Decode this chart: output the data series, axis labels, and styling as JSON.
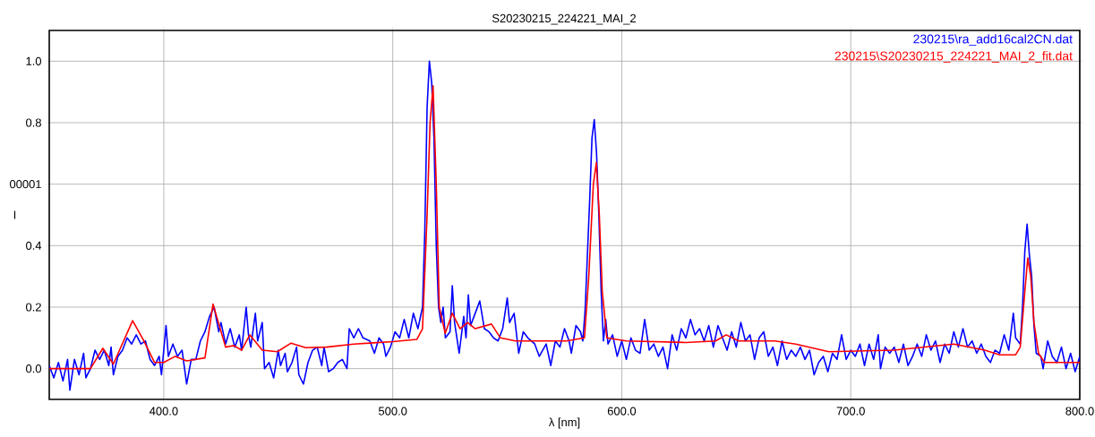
{
  "chart_data": {
    "type": "line",
    "title": "S20230215_224221_MAI_2",
    "xlabel": "λ [nm]",
    "ylabel": "I",
    "xlim": [
      350,
      800
    ],
    "ylim": [
      -0.1,
      1.1
    ],
    "xticks": [
      {
        "value": 400,
        "label": "400.0"
      },
      {
        "value": 500,
        "label": "500.0"
      },
      {
        "value": 600,
        "label": "600.0"
      },
      {
        "value": 700,
        "label": "700.0"
      },
      {
        "value": 800,
        "label": "800.0"
      }
    ],
    "yticks": [
      {
        "value": 0,
        "label": "0.0"
      },
      {
        "value": 0.2,
        "label": "0.2"
      },
      {
        "value": 0.4,
        "label": "0.4"
      },
      {
        "value": 0.6,
        "label": "00001"
      },
      {
        "value": 0.8,
        "label": "0.8"
      },
      {
        "value": 1.0,
        "label": "1.0"
      }
    ],
    "grid": true,
    "legend": "top right",
    "marker": "none",
    "line_style": "solid",
    "series": [
      {
        "name": "230215\\ra_add16cal2CN.dat",
        "color": "#0000ff",
        "x": [
          350,
          352,
          354,
          356,
          358,
          359,
          361,
          363,
          365,
          366,
          368,
          370,
          372,
          374,
          376,
          377,
          378,
          380,
          382,
          384,
          386,
          388,
          390,
          392,
          394,
          396,
          398,
          399,
          401,
          402,
          404,
          406,
          408,
          410,
          412,
          414,
          416,
          418,
          420,
          422,
          424,
          425,
          427,
          429,
          431,
          433,
          434,
          436,
          437,
          438,
          440,
          441,
          443,
          444,
          446,
          448,
          450,
          451,
          453,
          454,
          456,
          458,
          459,
          461,
          463,
          465,
          467,
          469,
          470,
          472,
          474,
          476,
          478,
          480,
          481,
          483,
          485,
          487,
          490,
          492,
          494,
          496,
          497,
          499,
          501,
          503,
          505,
          507,
          509,
          511,
          513,
          514,
          515,
          516,
          517,
          518,
          519,
          520,
          521,
          522,
          523,
          525,
          526,
          527,
          529,
          531,
          532,
          533,
          534,
          536,
          538,
          540,
          542,
          544,
          546,
          548,
          550,
          551,
          553,
          555,
          557,
          559,
          562,
          564,
          567,
          569,
          571,
          573,
          575,
          577,
          578,
          580,
          582,
          583,
          584,
          586,
          587,
          588,
          589,
          590,
          591,
          592,
          593,
          594,
          596,
          598,
          600,
          602,
          604,
          606,
          608,
          610,
          612,
          614,
          616,
          618,
          620,
          622,
          624,
          626,
          628,
          630,
          632,
          634,
          636,
          638,
          640,
          642,
          644,
          646,
          648,
          650,
          652,
          654,
          656,
          658,
          660,
          662,
          664,
          666,
          668,
          670,
          672,
          674,
          676,
          678,
          680,
          682,
          684,
          686,
          688,
          690,
          692,
          694,
          696,
          698,
          700,
          702,
          704,
          706,
          708,
          710,
          712,
          713,
          715,
          717,
          719,
          721,
          723,
          725,
          727,
          729,
          731,
          733,
          735,
          737,
          739,
          741,
          743,
          745,
          747,
          749,
          751,
          753,
          755,
          757,
          759,
          761,
          763,
          765,
          767,
          769,
          771,
          772,
          774,
          775,
          776,
          777,
          778,
          779,
          780,
          781,
          783,
          784,
          786,
          788,
          790,
          792,
          794,
          796,
          798,
          800
        ],
        "values": [
          0.01,
          -0.03,
          0.02,
          -0.04,
          0.03,
          -0.07,
          0.03,
          -0.02,
          0.05,
          -0.03,
          0.0,
          0.06,
          0.03,
          0.06,
          0.01,
          0.07,
          -0.02,
          0.04,
          0.06,
          0.1,
          0.08,
          0.11,
          0.08,
          0.09,
          0.03,
          0.01,
          0.04,
          -0.02,
          0.14,
          0.04,
          0.08,
          0.04,
          0.06,
          -0.05,
          0.03,
          0.03,
          0.09,
          0.12,
          0.17,
          0.2,
          0.12,
          0.15,
          0.08,
          0.13,
          0.07,
          0.11,
          0.06,
          0.2,
          0.11,
          0.07,
          0.18,
          0.09,
          0.15,
          0.0,
          0.02,
          -0.03,
          0.06,
          0.01,
          0.05,
          -0.01,
          0.02,
          0.07,
          -0.02,
          -0.05,
          0.02,
          0.06,
          0.07,
          0.01,
          0.07,
          -0.01,
          0.0,
          0.02,
          0.03,
          0.0,
          0.13,
          0.1,
          0.13,
          0.1,
          0.09,
          0.05,
          0.1,
          0.08,
          0.04,
          0.07,
          0.12,
          0.1,
          0.16,
          0.1,
          0.18,
          0.13,
          0.2,
          0.45,
          0.85,
          1.0,
          0.93,
          0.75,
          0.4,
          0.2,
          0.15,
          0.2,
          0.1,
          0.12,
          0.27,
          0.15,
          0.05,
          0.17,
          0.1,
          0.24,
          0.14,
          0.18,
          0.22,
          0.13,
          0.12,
          0.1,
          0.09,
          0.13,
          0.23,
          0.15,
          0.18,
          0.05,
          0.12,
          0.1,
          0.08,
          0.04,
          0.08,
          0.01,
          0.09,
          0.07,
          0.13,
          0.09,
          0.05,
          0.14,
          0.12,
          0.09,
          0.19,
          0.55,
          0.75,
          0.81,
          0.7,
          0.5,
          0.25,
          0.09,
          0.16,
          0.08,
          0.11,
          0.04,
          0.09,
          0.03,
          0.1,
          0.06,
          0.05,
          0.16,
          0.06,
          0.08,
          0.04,
          0.07,
          0.0,
          0.11,
          0.06,
          0.13,
          0.1,
          0.16,
          0.11,
          0.13,
          0.09,
          0.14,
          0.07,
          0.14,
          0.1,
          0.06,
          0.12,
          0.07,
          0.15,
          0.09,
          0.11,
          0.03,
          0.1,
          0.12,
          0.04,
          0.07,
          0.01,
          0.09,
          0.03,
          0.06,
          0.04,
          0.07,
          0.03,
          0.06,
          -0.02,
          0.02,
          0.04,
          -0.01,
          0.05,
          0.03,
          0.11,
          0.03,
          0.06,
          0.04,
          0.08,
          0.01,
          0.08,
          0.03,
          0.11,
          0.0,
          0.07,
          0.05,
          0.07,
          0.02,
          0.08,
          0.01,
          0.04,
          0.08,
          0.04,
          0.11,
          0.06,
          0.09,
          0.02,
          0.08,
          0.05,
          0.12,
          0.07,
          0.13,
          0.07,
          0.09,
          0.05,
          0.08,
          0.04,
          0.02,
          0.06,
          0.05,
          0.11,
          0.06,
          0.18,
          0.1,
          0.08,
          0.2,
          0.38,
          0.47,
          0.37,
          0.3,
          0.14,
          0.05,
          0.04,
          0.0,
          0.09,
          0.04,
          0.02,
          0.07,
          0.0,
          0.05,
          -0.01,
          0.04
        ]
      },
      {
        "name": "230215\\S20230215_224221_MAI_2_fit.dat",
        "color": "#ff0000",
        "x": [
          350,
          368,
          373.4,
          378,
          386.4,
          391,
          396,
          400,
          405,
          410,
          418,
          421.5,
          427,
          430.6,
          434,
          437.6,
          443,
          449.6,
          455.6,
          462,
          471,
          483,
          490,
          500,
          510.5,
          513,
          515,
          516.3,
          517.6,
          519,
          520.3,
          522.9,
          526,
          529.4,
          532.7,
          536,
          543.1,
          547,
          553.6,
          575.8,
          583.7,
          585.6,
          587.6,
          588.9,
          590.2,
          591.5,
          593.5,
          602,
          628,
          641,
          645.6,
          651,
          666.8,
          676,
          690.4,
          719,
          732,
          745,
          758.5,
          765,
          772,
          774,
          776,
          777.3,
          778.6,
          780,
          782,
          784.6,
          800
        ],
        "values": [
          0.0,
          0.0,
          0.066,
          0.015,
          0.156,
          0.095,
          0.02,
          0.02,
          0.04,
          0.025,
          0.035,
          0.21,
          0.07,
          0.075,
          0.06,
          0.11,
          0.06,
          0.055,
          0.083,
          0.068,
          0.07,
          0.08,
          0.083,
          0.088,
          0.095,
          0.13,
          0.5,
          0.8,
          0.92,
          0.6,
          0.2,
          0.115,
          0.18,
          0.13,
          0.15,
          0.13,
          0.145,
          0.1,
          0.09,
          0.09,
          0.1,
          0.3,
          0.6,
          0.67,
          0.5,
          0.25,
          0.1,
          0.09,
          0.085,
          0.09,
          0.11,
          0.09,
          0.09,
          0.08,
          0.055,
          0.06,
          0.07,
          0.08,
          0.06,
          0.045,
          0.045,
          0.07,
          0.25,
          0.36,
          0.3,
          0.15,
          0.05,
          0.02,
          0.02
        ]
      }
    ]
  }
}
